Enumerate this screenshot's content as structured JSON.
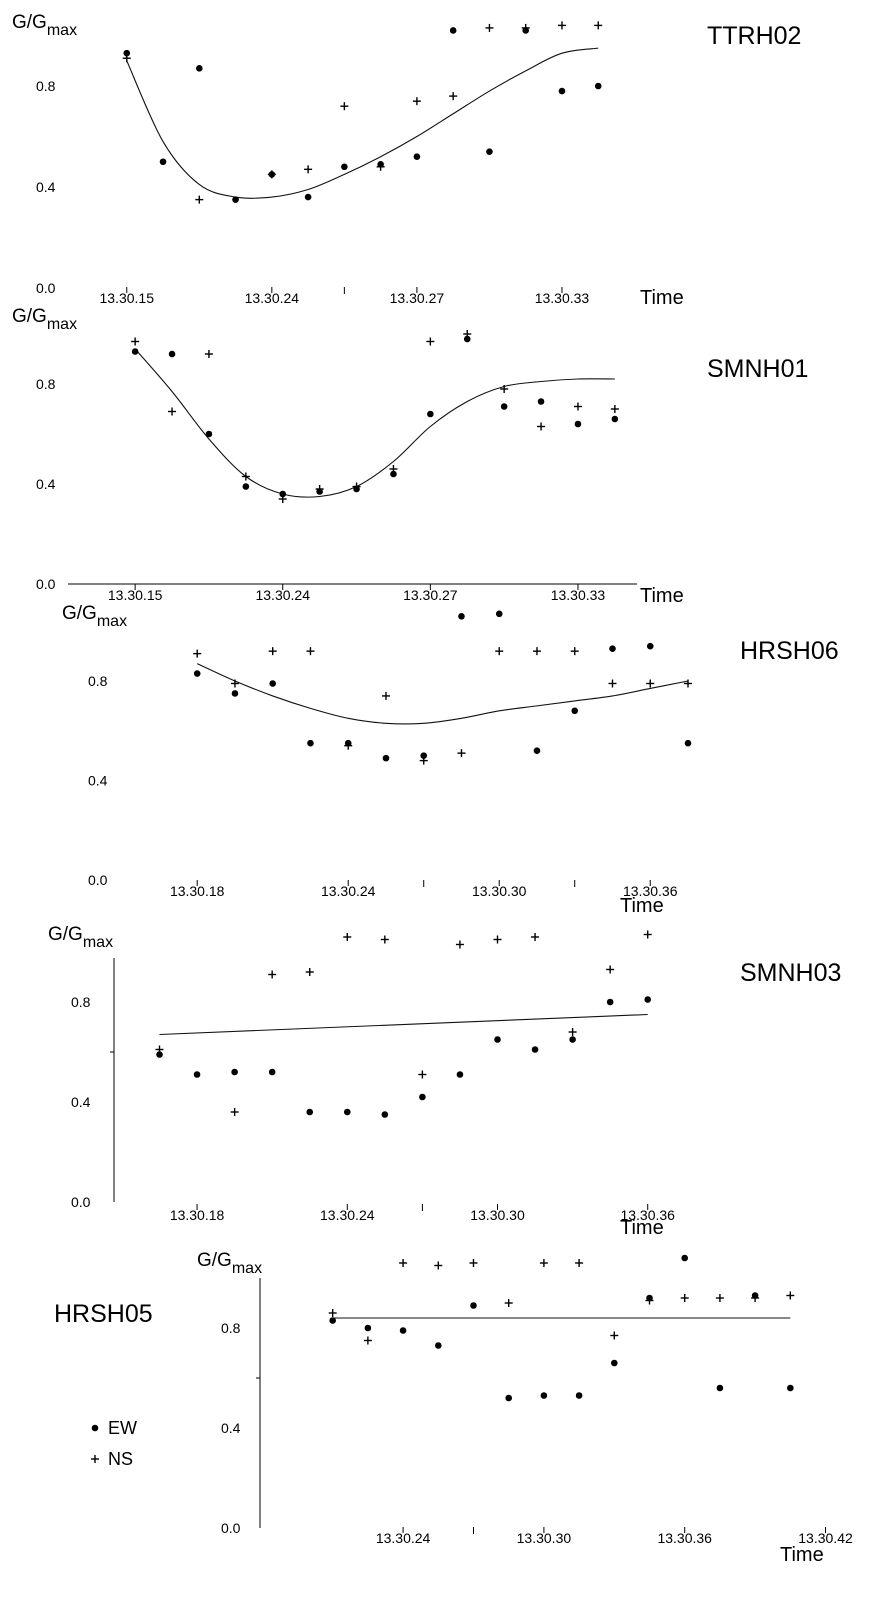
{
  "legend": [
    {
      "marker": "●",
      "label": "EW"
    },
    {
      "marker": "+",
      "label": "NS"
    }
  ],
  "chart_data": [
    {
      "type": "scatter",
      "title": "TTRH02",
      "ylabel_main": "G/G",
      "ylabel_sub": "max",
      "xlabel": "Time",
      "ylim": [
        0.0,
        1.0
      ],
      "yticks": [
        "0.0",
        "0.4",
        "0.8"
      ],
      "x_tick_labels": [
        {
          "x": 0,
          "label": "13.30.15"
        },
        {
          "x": 4,
          "label": "13.30.24"
        },
        {
          "x": 8,
          "label": "13.30.27"
        },
        {
          "x": 12,
          "label": "13.30.33"
        }
      ],
      "x_minor_ticks": [
        6
      ],
      "xlim": [
        -0.6,
        13.6
      ],
      "series": [
        {
          "name": "EW",
          "marker": "dot",
          "points": [
            [
              0,
              0.93
            ],
            [
              1,
              0.5
            ],
            [
              2,
              0.87
            ],
            [
              3,
              0.35
            ],
            [
              4,
              0.45
            ],
            [
              5,
              0.36
            ],
            [
              6,
              0.48
            ],
            [
              7,
              0.49
            ],
            [
              8,
              0.52
            ],
            [
              9,
              1.02
            ],
            [
              10,
              0.54
            ],
            [
              11,
              1.02
            ],
            [
              12,
              0.78
            ],
            [
              13,
              0.8
            ]
          ]
        },
        {
          "name": "NS",
          "marker": "plus",
          "points": [
            [
              0,
              0.91
            ],
            [
              2,
              0.35
            ],
            [
              4,
              0.45
            ],
            [
              5,
              0.47
            ],
            [
              6,
              0.72
            ],
            [
              7,
              0.48
            ],
            [
              8,
              0.74
            ],
            [
              9,
              0.76
            ],
            [
              10,
              1.03
            ],
            [
              11,
              1.03
            ],
            [
              12,
              1.04
            ],
            [
              13,
              1.04
            ]
          ]
        }
      ],
      "fit": [
        [
          0,
          0.9
        ],
        [
          1,
          0.58
        ],
        [
          2,
          0.41
        ],
        [
          3,
          0.36
        ],
        [
          4,
          0.36
        ],
        [
          5,
          0.39
        ],
        [
          6,
          0.45
        ],
        [
          7,
          0.52
        ],
        [
          8,
          0.6
        ],
        [
          9,
          0.69
        ],
        [
          10,
          0.78
        ],
        [
          11,
          0.86
        ],
        [
          12,
          0.93
        ],
        [
          13,
          0.95
        ]
      ]
    },
    {
      "type": "scatter",
      "title": "SMNH01",
      "ylabel_main": "G/G",
      "ylabel_sub": "max",
      "xlabel": "Time",
      "ylim": [
        0.0,
        1.0
      ],
      "yticks": [
        "0.0",
        "0.4",
        "0.8"
      ],
      "x_tick_labels": [
        {
          "x": 0,
          "label": "13.30.15"
        },
        {
          "x": 4,
          "label": "13.30.24"
        },
        {
          "x": 8,
          "label": "13.30.27"
        },
        {
          "x": 12,
          "label": "13.30.33"
        }
      ],
      "x_minor_ticks": [],
      "xlim": [
        -0.6,
        13.6
      ],
      "series": [
        {
          "name": "EW",
          "marker": "dot",
          "points": [
            [
              0,
              0.93
            ],
            [
              1,
              0.92
            ],
            [
              2,
              0.6
            ],
            [
              3,
              0.39
            ],
            [
              4,
              0.36
            ],
            [
              5,
              0.37
            ],
            [
              6,
              0.38
            ],
            [
              7,
              0.44
            ],
            [
              8,
              0.68
            ],
            [
              9,
              0.98
            ],
            [
              10,
              0.71
            ],
            [
              11,
              0.73
            ],
            [
              12,
              0.64
            ],
            [
              13,
              0.66
            ]
          ]
        },
        {
          "name": "NS",
          "marker": "plus",
          "points": [
            [
              0,
              0.97
            ],
            [
              1,
              0.69
            ],
            [
              2,
              0.92
            ],
            [
              3,
              0.43
            ],
            [
              4,
              0.34
            ],
            [
              5,
              0.38
            ],
            [
              6,
              0.39
            ],
            [
              7,
              0.46
            ],
            [
              8,
              0.97
            ],
            [
              9,
              1.0
            ],
            [
              10,
              0.78
            ],
            [
              11,
              0.63
            ],
            [
              12,
              0.71
            ],
            [
              13,
              0.7
            ]
          ]
        }
      ],
      "fit": [
        [
          0,
          0.94
        ],
        [
          1,
          0.77
        ],
        [
          2,
          0.58
        ],
        [
          3,
          0.43
        ],
        [
          4,
          0.36
        ],
        [
          5,
          0.35
        ],
        [
          6,
          0.39
        ],
        [
          7,
          0.49
        ],
        [
          8,
          0.63
        ],
        [
          9,
          0.73
        ],
        [
          10,
          0.79
        ],
        [
          11,
          0.81
        ],
        [
          12,
          0.82
        ],
        [
          13,
          0.82
        ]
      ]
    },
    {
      "type": "scatter",
      "title": "HRSH06",
      "ylabel_main": "G/G",
      "ylabel_sub": "max",
      "xlabel": "Time",
      "ylim": [
        0.0,
        1.0
      ],
      "yticks": [
        "0.0",
        "0.4",
        "0.8"
      ],
      "x_tick_labels": [
        {
          "x": 0,
          "label": "13.30.18"
        },
        {
          "x": 4,
          "label": "13.30.24"
        },
        {
          "x": 8,
          "label": "13.30.30"
        },
        {
          "x": 12,
          "label": "13.30.36"
        }
      ],
      "x_minor_ticks": [
        6,
        10
      ],
      "xlim": [
        -0.8,
        13.0
      ],
      "series": [
        {
          "name": "EW",
          "marker": "dot",
          "points": [
            [
              0,
              0.83
            ],
            [
              1,
              0.75
            ],
            [
              2,
              0.79
            ],
            [
              3,
              0.55
            ],
            [
              4,
              0.55
            ],
            [
              5,
              0.49
            ],
            [
              6,
              0.5
            ],
            [
              7,
              1.06
            ],
            [
              8,
              1.07
            ],
            [
              9,
              0.52
            ],
            [
              10,
              0.68
            ],
            [
              11,
              0.93
            ],
            [
              12,
              0.94
            ],
            [
              13,
              0.55
            ]
          ]
        },
        {
          "name": "NS",
          "marker": "plus",
          "points": [
            [
              0,
              0.91
            ],
            [
              1,
              0.79
            ],
            [
              2,
              0.92
            ],
            [
              3,
              0.92
            ],
            [
              4,
              0.54
            ],
            [
              5,
              0.74
            ],
            [
              6,
              0.48
            ],
            [
              7,
              0.51
            ],
            [
              8,
              0.92
            ],
            [
              9,
              0.92
            ],
            [
              10,
              0.92
            ],
            [
              11,
              0.79
            ],
            [
              12,
              0.79
            ],
            [
              13,
              0.79
            ]
          ]
        }
      ],
      "fit": [
        [
          0,
          0.87
        ],
        [
          1,
          0.8
        ],
        [
          2,
          0.74
        ],
        [
          3,
          0.69
        ],
        [
          4,
          0.65
        ],
        [
          5,
          0.63
        ],
        [
          6,
          0.63
        ],
        [
          7,
          0.65
        ],
        [
          8,
          0.68
        ],
        [
          9,
          0.7
        ],
        [
          10,
          0.72
        ],
        [
          11,
          0.74
        ],
        [
          12,
          0.77
        ],
        [
          13,
          0.8
        ]
      ]
    },
    {
      "type": "scatter",
      "title": "SMNH03",
      "ylabel_main": "G/G",
      "ylabel_sub": "max",
      "xlabel": "Time",
      "ylim": [
        0.0,
        1.0
      ],
      "yticks": [
        "0.0",
        "0.4",
        "0.8"
      ],
      "x_tick_labels": [
        {
          "x": 0,
          "label": "13.30.18"
        },
        {
          "x": 4,
          "label": "13.30.24"
        },
        {
          "x": 8,
          "label": "13.30.30"
        },
        {
          "x": 12,
          "label": "13.30.36"
        }
      ],
      "x_minor_ticks": [
        6
      ],
      "xlim": [
        -1.2,
        12.7
      ],
      "series": [
        {
          "name": "EW",
          "marker": "dot",
          "points": [
            [
              -1,
              0.59
            ],
            [
              0,
              0.51
            ],
            [
              1,
              0.52
            ],
            [
              2,
              0.52
            ],
            [
              3,
              0.36
            ],
            [
              4,
              0.36
            ],
            [
              5,
              0.35
            ],
            [
              6,
              0.42
            ],
            [
              7,
              0.51
            ],
            [
              8,
              0.65
            ],
            [
              9,
              0.61
            ],
            [
              10,
              0.65
            ],
            [
              11,
              0.8
            ],
            [
              12,
              0.81
            ]
          ]
        },
        {
          "name": "NS",
          "marker": "plus",
          "points": [
            [
              -1,
              0.61
            ],
            [
              1,
              0.36
            ],
            [
              2,
              0.91
            ],
            [
              3,
              0.92
            ],
            [
              4,
              1.06
            ],
            [
              5,
              1.05
            ],
            [
              6,
              0.51
            ],
            [
              7,
              1.03
            ],
            [
              8,
              1.05
            ],
            [
              9,
              1.06
            ],
            [
              10,
              0.68
            ],
            [
              11,
              0.93
            ],
            [
              12,
              1.07
            ]
          ]
        }
      ],
      "fit": [
        [
          -1,
          0.67
        ],
        [
          12,
          0.75
        ]
      ]
    },
    {
      "type": "scatter",
      "title": "HRSH05",
      "ylabel_main": "G/G",
      "ylabel_sub": "max",
      "xlabel": "Time",
      "ylim": [
        0.0,
        1.0
      ],
      "yticks": [
        "0.0",
        "0.4",
        "0.8"
      ],
      "x_tick_labels": [
        {
          "x": 2,
          "label": "13.30.24"
        },
        {
          "x": 6,
          "label": "13.30.30"
        },
        {
          "x": 10,
          "label": "13.30.36"
        },
        {
          "x": 14,
          "label": "13.30.42"
        }
      ],
      "x_minor_ticks": [
        4
      ],
      "xlim": [
        -0.9,
        13.9
      ],
      "series": [
        {
          "name": "EW",
          "marker": "dot",
          "points": [
            [
              0,
              0.83
            ],
            [
              1,
              0.8
            ],
            [
              2,
              0.79
            ],
            [
              3,
              0.73
            ],
            [
              4,
              0.89
            ],
            [
              5,
              0.52
            ],
            [
              6,
              0.53
            ],
            [
              7,
              0.53
            ],
            [
              8,
              0.66
            ],
            [
              9,
              0.92
            ],
            [
              10,
              1.08
            ],
            [
              11,
              0.56
            ],
            [
              12,
              0.93
            ],
            [
              13,
              0.56
            ]
          ]
        },
        {
          "name": "NS",
          "marker": "plus",
          "points": [
            [
              0,
              0.86
            ],
            [
              1,
              0.75
            ],
            [
              2,
              1.06
            ],
            [
              3,
              1.05
            ],
            [
              4,
              1.06
            ],
            [
              5,
              0.9
            ],
            [
              6,
              1.06
            ],
            [
              7,
              1.06
            ],
            [
              8,
              0.77
            ],
            [
              9,
              0.91
            ],
            [
              10,
              0.92
            ],
            [
              11,
              0.92
            ],
            [
              12,
              0.92
            ],
            [
              13,
              0.93
            ]
          ]
        }
      ],
      "fit": [
        [
          0,
          0.84
        ],
        [
          13,
          0.84
        ]
      ]
    }
  ]
}
